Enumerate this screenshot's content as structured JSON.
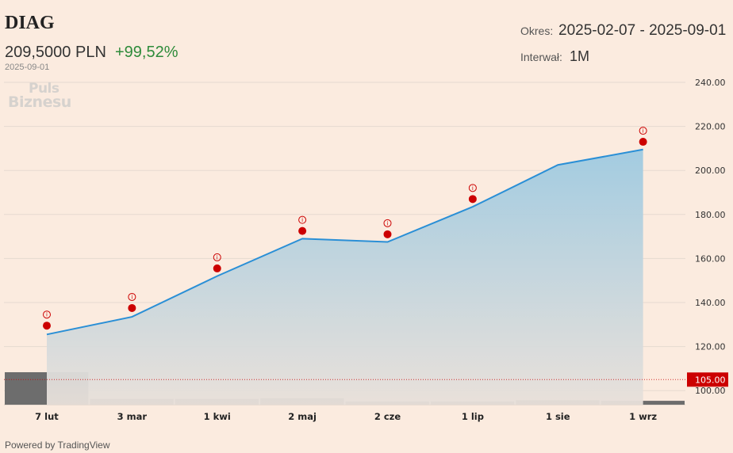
{
  "header": {
    "ticker": "DIAG",
    "price": "209,5000 PLN",
    "change": "+99,52%",
    "date": "2025-09-01",
    "logo_line1": "Puls",
    "logo_line2": "Biznesu",
    "period_label": "Okres:",
    "period_value": "2025-02-07 - 2025-09-01",
    "interval_label": "Interwał:",
    "interval_value": "1M"
  },
  "footer": {
    "powered_by": "Powered by TradingView"
  },
  "colors": {
    "background": "#fbebdf",
    "line": "#2a8fd6",
    "area_top": "#9ecae1",
    "marker": "#cc0000",
    "volume": "#6d6d6d",
    "grid": "#e6dad0",
    "current_price_bg": "#cc0000"
  },
  "chart_data": {
    "type": "area",
    "x": [
      "7 lut",
      "3 mar",
      "1 kwi",
      "2 maj",
      "2 cze",
      "1 lip",
      "1 sie",
      "1 wrz"
    ],
    "values": [
      125.5,
      133.5,
      152.0,
      169.0,
      167.5,
      183.5,
      202.5,
      209.5
    ],
    "marker_values": [
      129.5,
      137.5,
      155.5,
      172.5,
      171.0,
      187.0,
      null,
      213.0
    ],
    "volume_relative": [
      1.0,
      0.18,
      0.18,
      0.2,
      0.1,
      0.1,
      0.14,
      0.12
    ],
    "ylim": [
      96,
      240
    ],
    "yticks": [
      "240.00",
      "220.00",
      "200.00",
      "180.00",
      "160.00",
      "140.00",
      "120.00",
      "100.00"
    ],
    "ytick_values": [
      240,
      220,
      200,
      180,
      160,
      140,
      120,
      100
    ],
    "current_level": 105,
    "current_label": "105.00",
    "grid": true
  }
}
